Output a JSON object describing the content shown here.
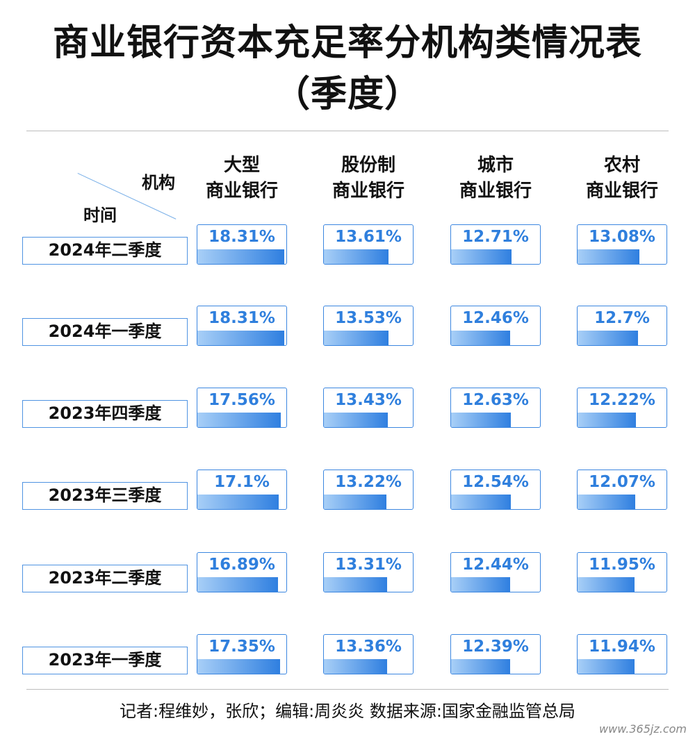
{
  "title_line1": "商业银行资本充足率分机构类情况表",
  "title_line2": "（季度）",
  "corner": {
    "column_axis": "机构",
    "row_axis": "时间"
  },
  "footer": "记者:程维妙，张欣；编辑:周炎炎  数据来源:国家金融监管总局",
  "watermark": "www.365jz.com",
  "colors": {
    "accent": "#2f7fdd",
    "border": "#3b86e0",
    "bar_light": "#a8cff7",
    "bar_dark": "#2f7fe0"
  },
  "chart_data": {
    "type": "table",
    "columns": [
      {
        "line1": "大型",
        "line2": "商业银行"
      },
      {
        "line1": "股份制",
        "line2": "商业银行"
      },
      {
        "line1": "城市",
        "line2": "商业银行"
      },
      {
        "line1": "农村",
        "line2": "商业银行"
      }
    ],
    "rows": [
      {
        "label": "2024年二季度",
        "values": [
          "18.31%",
          "13.61%",
          "12.71%",
          "13.08%"
        ]
      },
      {
        "label": "2024年一季度",
        "values": [
          "18.31%",
          "13.53%",
          "12.46%",
          "12.7%"
        ]
      },
      {
        "label": "2023年四季度",
        "values": [
          "17.56%",
          "13.43%",
          "12.63%",
          "12.22%"
        ]
      },
      {
        "label": "2023年三季度",
        "values": [
          "17.1%",
          "13.22%",
          "12.54%",
          "12.07%"
        ]
      },
      {
        "label": "2023年二季度",
        "values": [
          "16.89%",
          "13.31%",
          "12.44%",
          "11.95%"
        ]
      },
      {
        "label": "2023年一季度",
        "values": [
          "17.35%",
          "13.36%",
          "12.39%",
          "11.94%"
        ]
      }
    ]
  }
}
